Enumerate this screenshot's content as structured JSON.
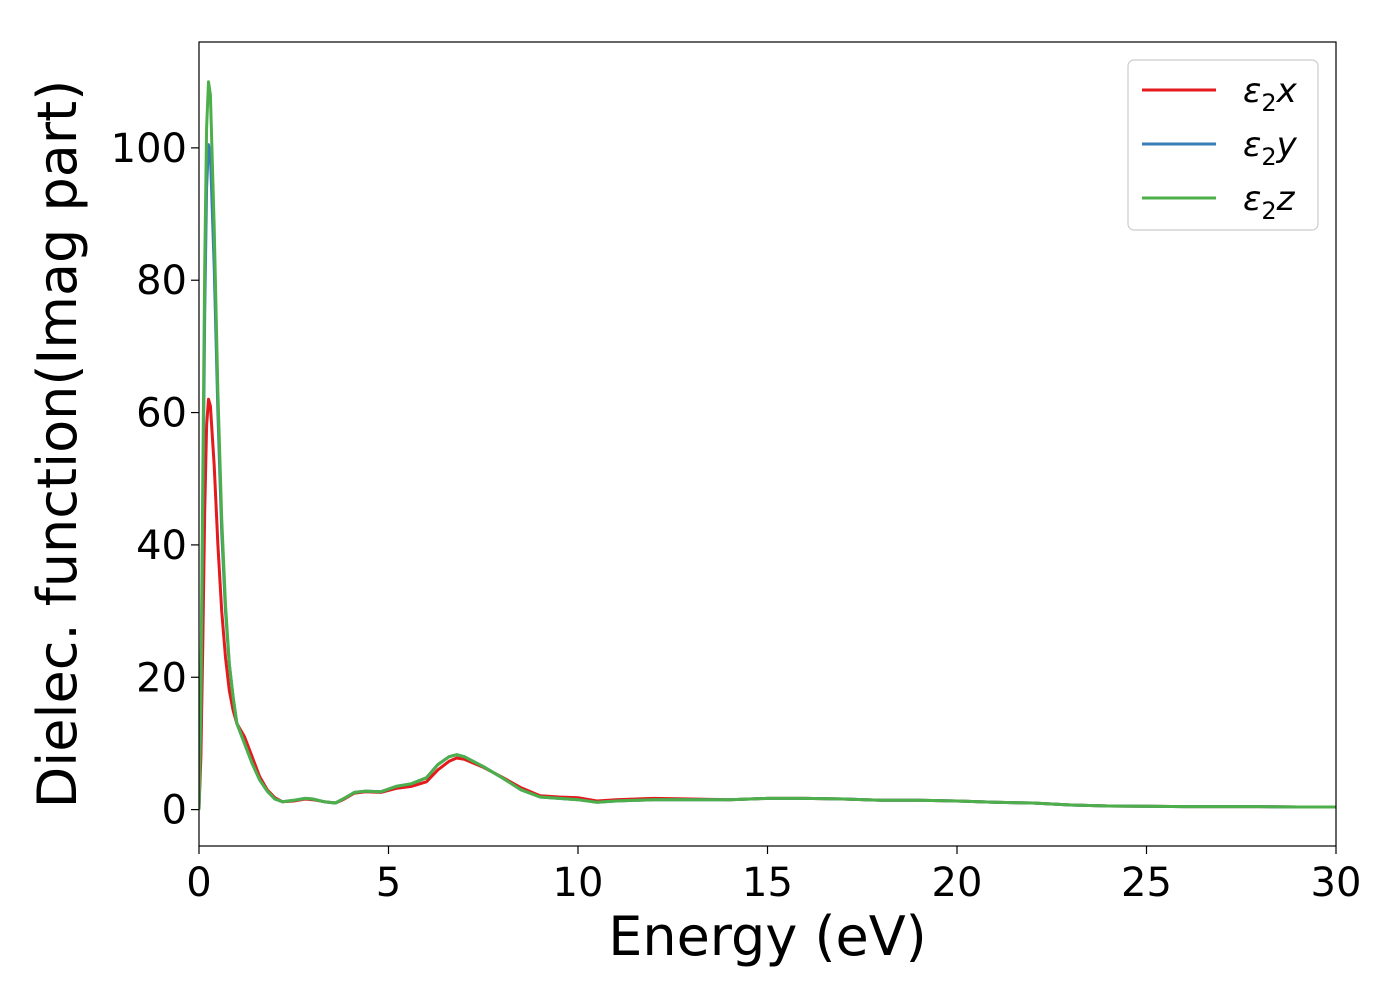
{
  "chart_data": {
    "type": "line",
    "xlabel": "Energy (eV)",
    "ylabel": "Dielec. function(Imag part)",
    "xlim": [
      0,
      30
    ],
    "ylim": [
      -5.5,
      116
    ],
    "xticks": [
      0,
      5,
      10,
      15,
      20,
      25,
      30
    ],
    "yticks": [
      0,
      20,
      40,
      60,
      80,
      100
    ],
    "grid": false,
    "legend_position": "top-right",
    "series": [
      {
        "name": "ε₂x",
        "name_base": "ε",
        "name_sub": "2",
        "name_var": "x",
        "color": "#e41a1c",
        "x": [
          0,
          0.05,
          0.1,
          0.15,
          0.2,
          0.25,
          0.3,
          0.4,
          0.5,
          0.6,
          0.7,
          0.8,
          0.9,
          1.0,
          1.2,
          1.4,
          1.6,
          1.8,
          2.0,
          2.2,
          2.5,
          2.8,
          3.0,
          3.3,
          3.6,
          3.8,
          4.1,
          4.4,
          4.8,
          5.2,
          5.6,
          6.0,
          6.3,
          6.6,
          6.8,
          7.0,
          7.5,
          8.0,
          8.5,
          9.0,
          9.5,
          10.0,
          10.5,
          11.0,
          12.0,
          13.0,
          14.0,
          15.0,
          16.0,
          17.0,
          18.0,
          19.0,
          20.0,
          21.0,
          22.0,
          23.0,
          24.0,
          25.0,
          26.0,
          27.0,
          28.0,
          29.0,
          30.0
        ],
        "values": [
          0,
          8,
          25,
          45,
          58,
          62,
          61,
          52,
          40,
          30,
          23,
          18,
          15,
          13,
          11,
          8,
          5,
          3,
          1.8,
          1.2,
          1.3,
          1.6,
          1.5,
          1.2,
          1.0,
          1.5,
          2.5,
          2.7,
          2.6,
          3.2,
          3.5,
          4.2,
          6.0,
          7.3,
          7.8,
          7.6,
          6.4,
          4.9,
          3.3,
          2.1,
          1.9,
          1.8,
          1.3,
          1.5,
          1.7,
          1.6,
          1.5,
          1.7,
          1.7,
          1.6,
          1.4,
          1.4,
          1.3,
          1.1,
          1.0,
          0.7,
          0.55,
          0.5,
          0.45,
          0.45,
          0.45,
          0.4,
          0.4
        ]
      },
      {
        "name": "ε₂y",
        "name_base": "ε",
        "name_sub": "2",
        "name_var": "y",
        "color": "#377eb8",
        "x": [
          0,
          0.05,
          0.1,
          0.15,
          0.2,
          0.25,
          0.3,
          0.4,
          0.5,
          0.6,
          0.7,
          0.8,
          0.9,
          1.0,
          1.2,
          1.4,
          1.6,
          1.8,
          2.0,
          2.2,
          2.5,
          2.8,
          3.0,
          3.3,
          3.6,
          3.8,
          4.1,
          4.4,
          4.8,
          5.2,
          5.6,
          6.0,
          6.3,
          6.6,
          6.8,
          7.0,
          7.5,
          8.0,
          8.5,
          9.0,
          9.5,
          10.0,
          10.5,
          11.0,
          12.0,
          13.0,
          14.0,
          15.0,
          16.0,
          17.0,
          18.0,
          19.0,
          20.0,
          21.0,
          22.0,
          23.0,
          24.0,
          25.0,
          26.0,
          27.0,
          28.0,
          29.0,
          30.0
        ],
        "values": [
          0,
          15,
          45,
          75,
          94,
          100.5,
          99,
          82,
          60,
          42,
          30,
          22,
          17,
          13,
          10,
          7,
          4.5,
          2.8,
          1.6,
          1.2,
          1.4,
          1.7,
          1.6,
          1.2,
          1.0,
          1.6,
          2.6,
          2.8,
          2.7,
          3.5,
          3.9,
          4.8,
          6.8,
          8.0,
          8.3,
          8.0,
          6.5,
          4.8,
          3.0,
          1.9,
          1.7,
          1.5,
          1.1,
          1.3,
          1.5,
          1.5,
          1.5,
          1.7,
          1.7,
          1.6,
          1.4,
          1.4,
          1.3,
          1.1,
          1.0,
          0.7,
          0.55,
          0.5,
          0.45,
          0.45,
          0.45,
          0.4,
          0.4
        ]
      },
      {
        "name": "ε₂z",
        "name_base": "ε",
        "name_sub": "2",
        "name_var": "z",
        "color": "#4daf4a",
        "x": [
          0,
          0.05,
          0.1,
          0.15,
          0.2,
          0.25,
          0.3,
          0.4,
          0.5,
          0.6,
          0.7,
          0.8,
          0.9,
          1.0,
          1.2,
          1.4,
          1.6,
          1.8,
          2.0,
          2.2,
          2.5,
          2.8,
          3.0,
          3.3,
          3.6,
          3.8,
          4.1,
          4.4,
          4.8,
          5.2,
          5.6,
          6.0,
          6.3,
          6.6,
          6.8,
          7.0,
          7.5,
          8.0,
          8.5,
          9.0,
          9.5,
          10.0,
          10.5,
          11.0,
          12.0,
          13.0,
          14.0,
          15.0,
          16.0,
          17.0,
          18.0,
          19.0,
          20.0,
          21.0,
          22.0,
          23.0,
          24.0,
          25.0,
          26.0,
          27.0,
          28.0,
          29.0,
          30.0
        ],
        "values": [
          0,
          17,
          50,
          82,
          103,
          110,
          108,
          88,
          63,
          44,
          31,
          22,
          17,
          13,
          10,
          7,
          4.5,
          2.8,
          1.6,
          1.2,
          1.4,
          1.7,
          1.6,
          1.2,
          1.0,
          1.6,
          2.6,
          2.8,
          2.7,
          3.5,
          3.9,
          4.8,
          6.8,
          8.0,
          8.3,
          8.0,
          6.5,
          4.8,
          3.0,
          1.9,
          1.7,
          1.5,
          1.1,
          1.3,
          1.5,
          1.5,
          1.5,
          1.7,
          1.7,
          1.6,
          1.4,
          1.4,
          1.3,
          1.1,
          1.0,
          0.7,
          0.55,
          0.5,
          0.45,
          0.45,
          0.45,
          0.4,
          0.4
        ]
      }
    ]
  }
}
